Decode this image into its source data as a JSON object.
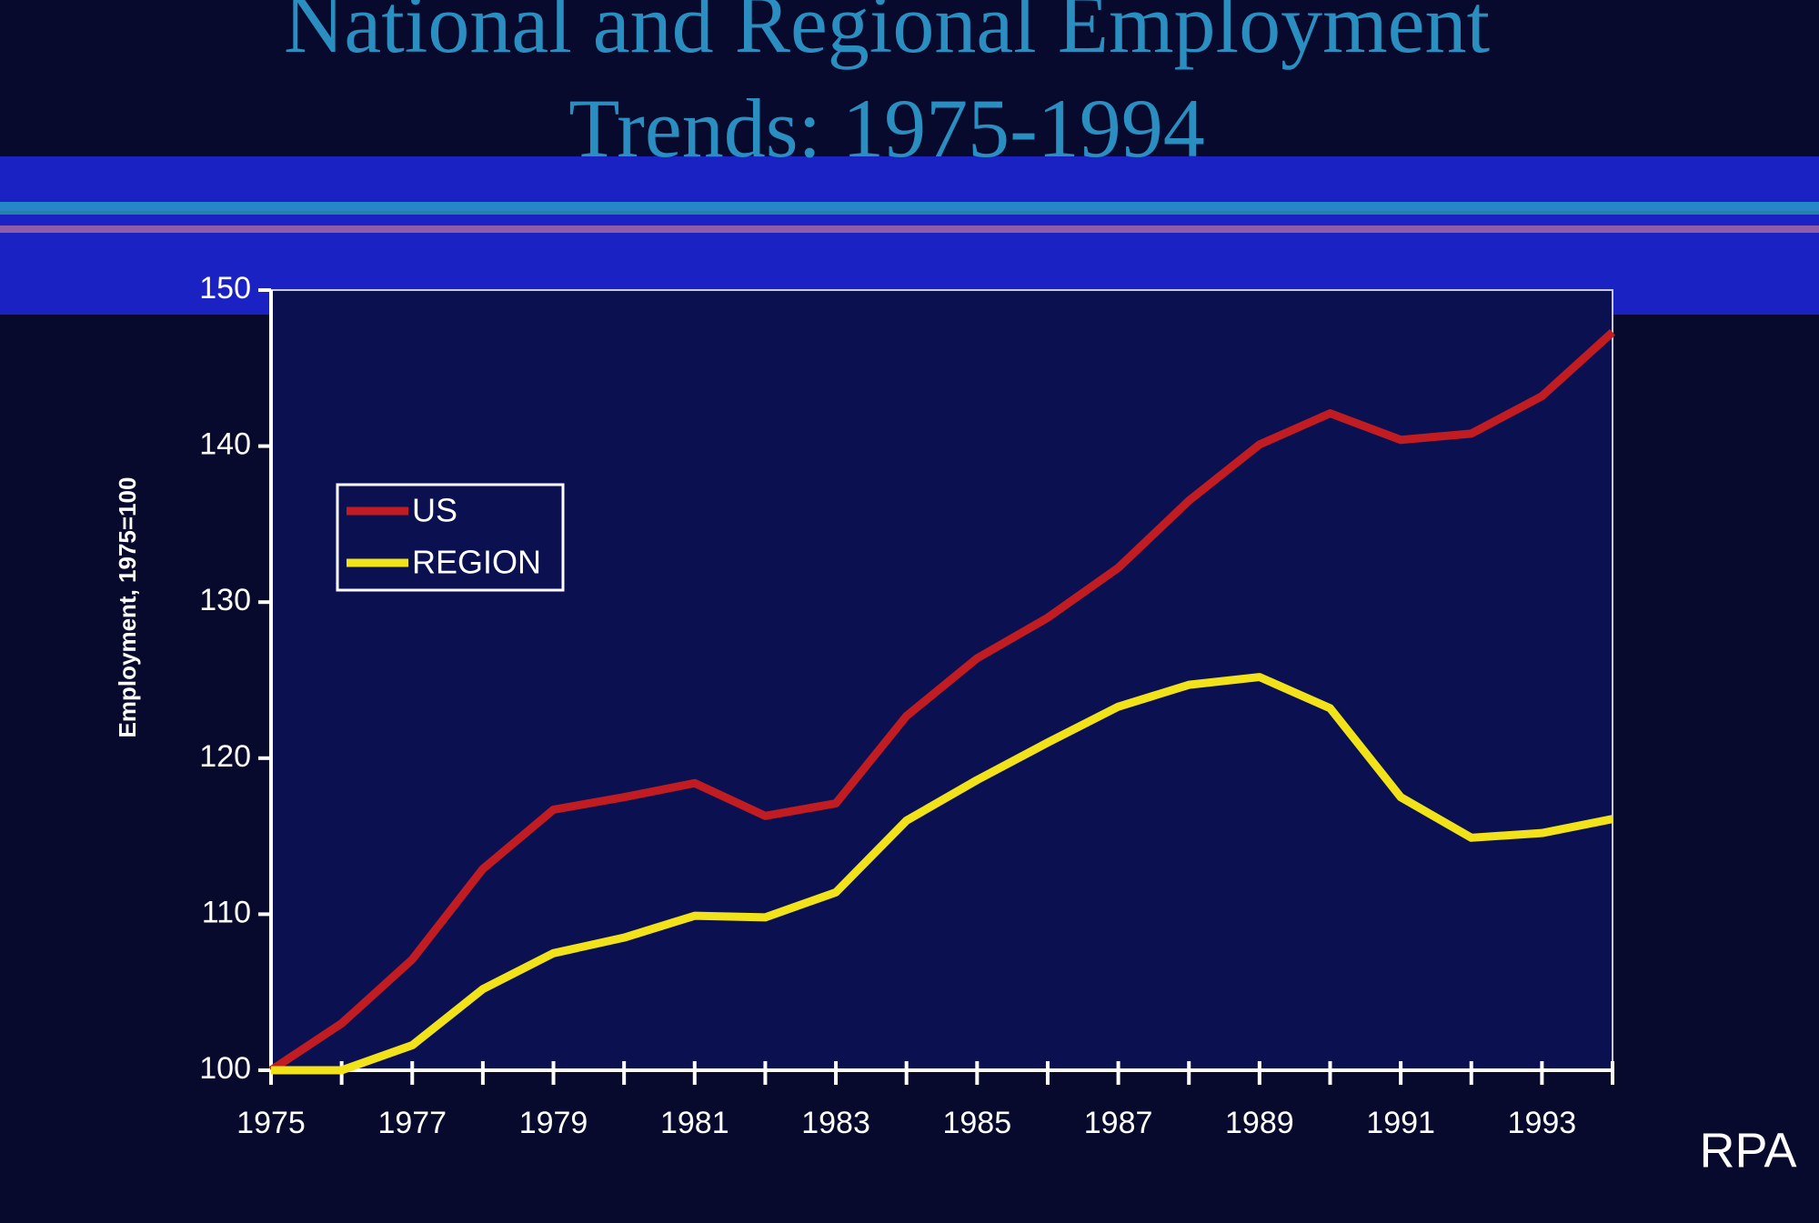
{
  "chart_data": {
    "type": "line",
    "title": [
      "National and Regional Employment",
      "Trends: 1975-1994"
    ],
    "y_label": "Employment, 1975=100",
    "annotation": "RPA",
    "x": [
      1975,
      1976,
      1977,
      1978,
      1979,
      1980,
      1981,
      1982,
      1983,
      1984,
      1985,
      1986,
      1987,
      1988,
      1989,
      1990,
      1991,
      1992,
      1993,
      1994
    ],
    "series": [
      {
        "name": "US",
        "color": "#c01c22",
        "values": [
          100,
          103,
          107.1,
          112.9,
          116.7,
          117.5,
          118.4,
          116.3,
          117.1,
          122.7,
          126.4,
          129,
          132.2,
          136.5,
          140.1,
          142.1,
          140.4,
          140.8,
          143.2,
          147.3
        ]
      },
      {
        "name": "REGION",
        "color": "#f2e21a",
        "values": [
          100,
          100,
          101.6,
          105.2,
          107.5,
          108.5,
          109.9,
          109.8,
          111.4,
          116,
          118.6,
          121,
          123.3,
          124.7,
          125.2,
          123.2,
          117.5,
          114.9,
          115.2,
          116.1
        ]
      }
    ],
    "xlim": [
      1975,
      1994
    ],
    "xticks": [
      1975,
      1977,
      1979,
      1981,
      1983,
      1985,
      1987,
      1989,
      1991,
      1993
    ],
    "ylim": [
      100,
      150
    ],
    "yticks": [
      100,
      110,
      120,
      130,
      140,
      150
    ],
    "grid": false,
    "legend": "upper left"
  }
}
